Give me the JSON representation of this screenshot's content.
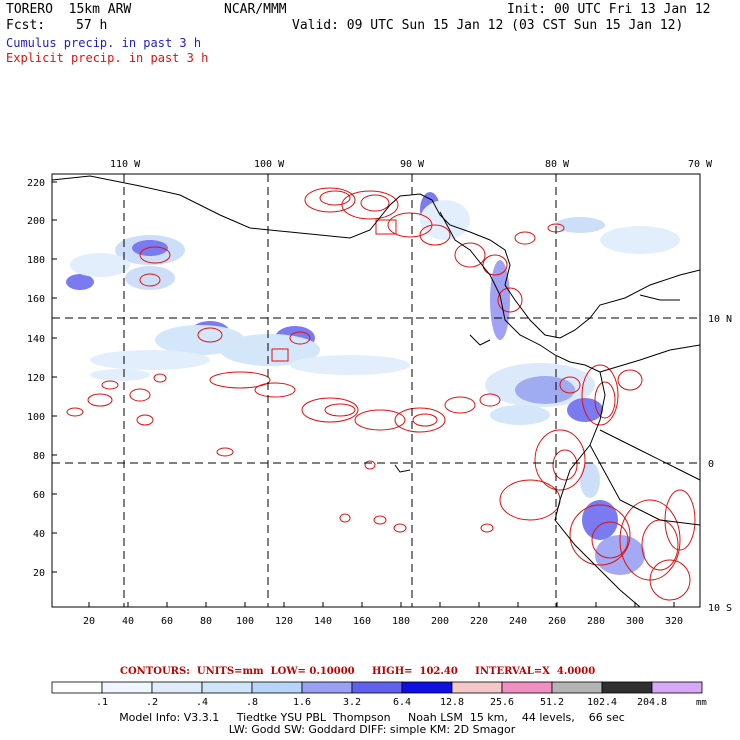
{
  "header": {
    "model": "TORERO  15km ARW",
    "org": "NCAR/MMM",
    "init": "Init: 00 UTC Fri 13 Jan 12",
    "fcst_label": "Fcst:",
    "fcst_value": "57 h",
    "valid": "Valid: 09 UTC Sun 15 Jan 12 (03 CST Sun 15 Jan 12)",
    "legend_cumulus": "Cumulus precip. in past 3 h",
    "legend_explicit": "Explicit precip. in past 3 h"
  },
  "map": {
    "top_lon_labels": [
      "110 W",
      "100 W",
      "90 W",
      "80 W",
      "70 W"
    ],
    "right_lat_labels": [
      "10 N",
      "0",
      "10 S"
    ],
    "left_ticks": [
      "220",
      "200",
      "180",
      "160",
      "140",
      "120",
      "100",
      "80",
      "60",
      "40",
      "20"
    ],
    "bottom_ticks": [
      "20",
      "40",
      "60",
      "80",
      "100",
      "120",
      "140",
      "160",
      "180",
      "200",
      "220",
      "240",
      "260",
      "280",
      "300",
      "320"
    ],
    "colors": {
      "coast": "#000000",
      "explicit": "#e01010",
      "cumulus_light": "#c8dcf8",
      "cumulus_mid": "#6b6bf0",
      "cumulus_dark": "#1e1ee0"
    }
  },
  "contours_info": {
    "label": "CONTOURS:  UNITS=mm  LOW= 0.10000     HIGH=  102.40     INTERVAL=X  4.0000"
  },
  "colorbar": {
    "labels": [
      ".1",
      ".2",
      ".4",
      ".8",
      "1.6",
      "3.2",
      "6.4",
      "12.8",
      "25.6",
      "51.2",
      "102.4",
      "204.8"
    ],
    "unit": "mm",
    "colors": [
      "#ffffff",
      "#f0f6ff",
      "#e0ecfc",
      "#d0e4fa",
      "#b8d4f8",
      "#9aa0f4",
      "#6060ec",
      "#1010e0",
      "#f4c8c8",
      "#f090c0",
      "#b4b4b4",
      "#303030",
      "#d8a8f8"
    ]
  },
  "model_info": {
    "line1": "Model Info: V3.3.1     Tiedtke YSU PBL  Thompson     Noah LSM  15 km,    44 levels,    66 sec",
    "line2": "LW: Godd SW: Goddard DIFF: simple KM: 2D Smagor"
  }
}
